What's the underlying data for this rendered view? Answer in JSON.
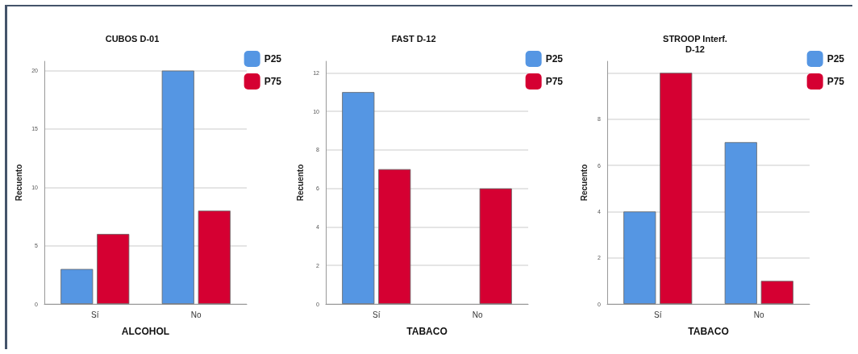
{
  "chart_data": [
    {
      "type": "bar",
      "title": "CUBOS D-01",
      "xlabel": "ALCOHOL",
      "ylabel": "Recuento",
      "categories": [
        "Sí",
        "No"
      ],
      "series": [
        {
          "name": "P25",
          "color": "#5596e3",
          "values": [
            3,
            20
          ]
        },
        {
          "name": "P75",
          "color": "#d50032",
          "values": [
            6,
            8
          ]
        }
      ],
      "ylim": [
        0,
        20.8
      ],
      "yticks": [
        0,
        5,
        10,
        15,
        20
      ],
      "grid": "y",
      "legend": "top right"
    },
    {
      "type": "bar",
      "title": "FAST D-12",
      "xlabel": "TABACO",
      "ylabel": "Recuento",
      "categories": [
        "Sí",
        "No"
      ],
      "series": [
        {
          "name": "P25",
          "color": "#5596e3",
          "values": [
            11,
            null
          ]
        },
        {
          "name": "P75",
          "color": "#d50032",
          "values": [
            7,
            6
          ]
        }
      ],
      "ylim": [
        0,
        12.6
      ],
      "yticks": [
        0,
        2,
        4,
        6,
        8,
        10,
        12
      ],
      "grid": "y",
      "legend": "top right"
    },
    {
      "type": "bar",
      "title": "STROOP Interf.\nD-12",
      "xlabel": "TABACO",
      "ylabel": "Recuento",
      "categories": [
        "Sí",
        "No"
      ],
      "series": [
        {
          "name": "P25",
          "color": "#5596e3",
          "values": [
            4,
            7
          ]
        },
        {
          "name": "P75",
          "color": "#d50032",
          "values": [
            10,
            1
          ]
        }
      ],
      "ylim": [
        0,
        10.5
      ],
      "yticks": [
        0,
        2,
        4,
        6,
        8,
        {
          "value": 10,
          "label": null
        }
      ],
      "grid": "y",
      "legend": "top right"
    }
  ]
}
